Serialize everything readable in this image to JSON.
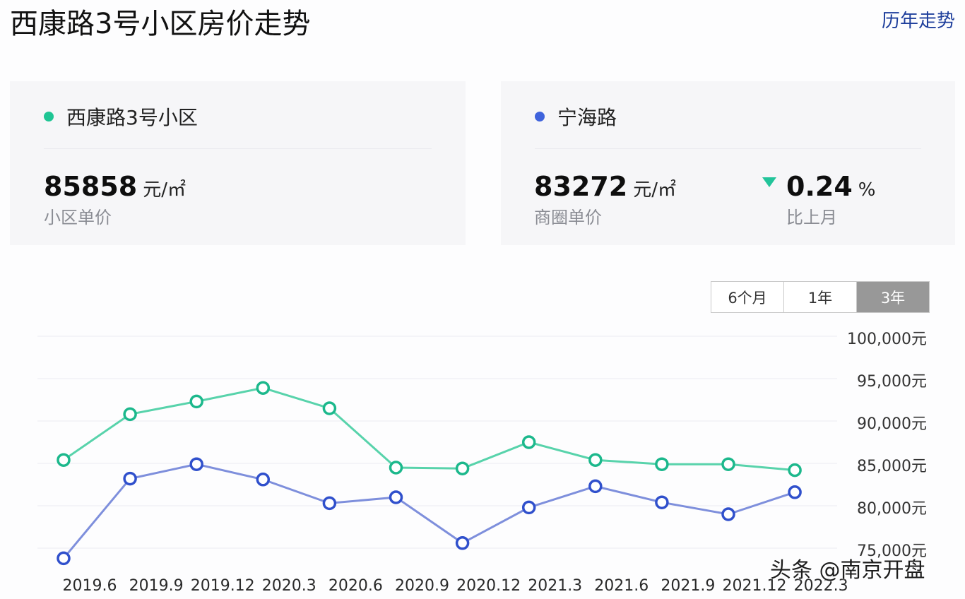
{
  "header": {
    "title": "西康路3号小区房价走势",
    "history_link": "历年走势"
  },
  "cards": [
    {
      "name": "西康路3号小区",
      "dot_color": "#1fc594",
      "price": "85858",
      "unit": "元/㎡",
      "price_label": "小区单价"
    },
    {
      "name": "宁海路",
      "dot_color": "#3f63dc",
      "price": "83272",
      "unit": "元/㎡",
      "price_label": "商圈单价",
      "change_direction": "down",
      "change_color": "#22c49a",
      "change_value": "0.24",
      "change_unit": "%",
      "change_label": "比上月"
    }
  ],
  "range_switch": {
    "options": [
      "6个月",
      "1年",
      "3年"
    ],
    "selected": "3年"
  },
  "watermark": "头条 @南京开盘",
  "chart_data": {
    "type": "line",
    "title": "",
    "xlabel": "",
    "ylabel": "",
    "x": [
      "2019.6",
      "2019.9",
      "2019.12",
      "2020.3",
      "2020.6",
      "2020.9",
      "2020.12",
      "2021.3",
      "2021.6",
      "2021.9",
      "2021.12",
      "2022.3"
    ],
    "y_ticks": [
      "100,000元",
      "95,000元",
      "90,000元",
      "85,000元",
      "80,000元",
      "75,000元"
    ],
    "ylim": [
      75000,
      100000
    ],
    "grid": true,
    "legend": "none (series identified by cards above)",
    "series": [
      {
        "name": "西康路3号小区",
        "color": "#2cc79a",
        "values": [
          85400,
          90800,
          92300,
          93900,
          91500,
          84500,
          84400,
          87500,
          85400,
          84900,
          84900,
          84200
        ]
      },
      {
        "name": "宁海路",
        "color": "#3f5fd4",
        "values": [
          73800,
          83200,
          84900,
          83100,
          80300,
          81000,
          75600,
          79800,
          82300,
          80400,
          79000,
          81600
        ]
      }
    ]
  }
}
